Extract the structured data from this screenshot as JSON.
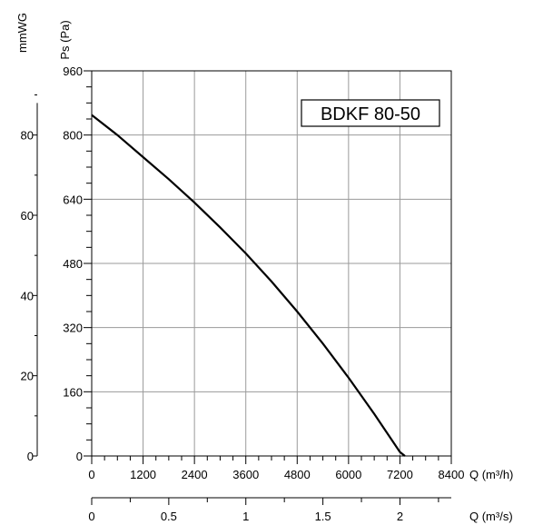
{
  "chart_data": {
    "type": "line",
    "model_label": "BDKF 80-50",
    "ylabel": "Ps (Pa)",
    "y2label": "mmWG",
    "xlabel": "Q (m³/h)",
    "x2label": "Q (m³/s)",
    "xlim": [
      0,
      8400
    ],
    "ylim": [
      0,
      960
    ],
    "y2lim": [
      0,
      96
    ],
    "x2lim": [
      0,
      2.333
    ],
    "grid": true,
    "x_ticks": [
      "0",
      "1200",
      "2400",
      "3600",
      "4800",
      "6000",
      "7200",
      "8400"
    ],
    "y_ticks": [
      "0",
      "160",
      "320",
      "480",
      "640",
      "800",
      "960"
    ],
    "y2_ticks": [
      "0",
      "20",
      "40",
      "60",
      "80"
    ],
    "x2_ticks": [
      "0",
      "0.5",
      "1",
      "1.5",
      "2"
    ],
    "series": [
      {
        "x": [
          0,
          600,
          1200,
          1800,
          2400,
          3000,
          3600,
          4200,
          4800,
          5400,
          6000,
          6600,
          7200,
          7550
        ],
        "y": [
          850,
          800,
          745,
          690,
          632,
          570,
          505,
          435,
          360,
          280,
          195,
          105,
          10,
          -20
        ]
      }
    ]
  }
}
